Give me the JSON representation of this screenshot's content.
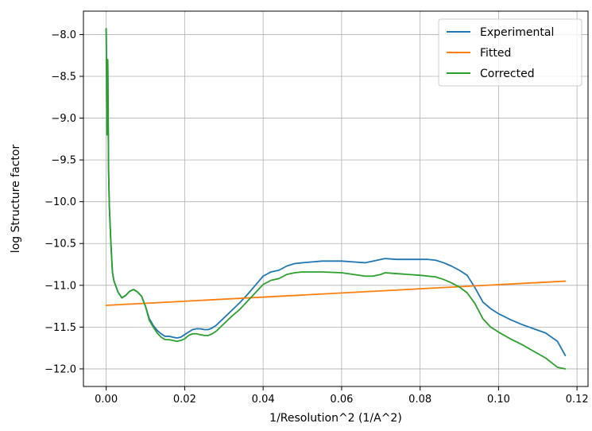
{
  "chart_data": {
    "type": "line",
    "title": "",
    "xlabel": "1/Resolution^2 (1/A^2)",
    "ylabel": "log Structure factor",
    "xlim": [
      -0.0058,
      0.1228
    ],
    "ylim": [
      -12.21,
      -7.72
    ],
    "xticks": [
      0.0,
      0.02,
      0.04,
      0.06,
      0.08,
      0.1,
      0.12
    ],
    "xtick_labels": [
      "0.00",
      "0.02",
      "0.04",
      "0.06",
      "0.08",
      "0.10",
      "0.12"
    ],
    "yticks": [
      -8.0,
      -8.5,
      -9.0,
      -9.5,
      -10.0,
      -10.5,
      -11.0,
      -11.5,
      -12.0
    ],
    "ytick_labels": [
      "−8.0",
      "−8.5",
      "−9.0",
      "−9.5",
      "−10.0",
      "−10.5",
      "−11.0",
      "−11.5",
      "−12.0"
    ],
    "grid": true,
    "legend_position": "top-right",
    "series": [
      {
        "name": "Experimental",
        "color": "#1f77b4",
        "x": [
          0.0,
          0.0002,
          0.0004,
          0.0006,
          0.0008,
          0.0012,
          0.0016,
          0.002,
          0.003,
          0.004,
          0.005,
          0.006,
          0.007,
          0.008,
          0.009,
          0.01,
          0.011,
          0.012,
          0.013,
          0.014,
          0.015,
          0.016,
          0.017,
          0.018,
          0.019,
          0.02,
          0.021,
          0.022,
          0.023,
          0.024,
          0.025,
          0.026,
          0.027,
          0.028,
          0.03,
          0.032,
          0.034,
          0.036,
          0.038,
          0.04,
          0.042,
          0.044,
          0.046,
          0.048,
          0.05,
          0.055,
          0.06,
          0.063,
          0.066,
          0.068,
          0.07,
          0.071,
          0.074,
          0.077,
          0.08,
          0.082,
          0.084,
          0.086,
          0.088,
          0.09,
          0.092,
          0.094,
          0.096,
          0.098,
          0.1,
          0.103,
          0.106,
          0.109,
          0.112,
          0.115,
          0.117
        ],
        "y": [
          -7.93,
          -9.2,
          -8.3,
          -9.6,
          -10.05,
          -10.5,
          -10.85,
          -10.95,
          -11.08,
          -11.15,
          -11.12,
          -11.07,
          -11.05,
          -11.08,
          -11.13,
          -11.25,
          -11.4,
          -11.48,
          -11.54,
          -11.58,
          -11.61,
          -11.61,
          -11.62,
          -11.63,
          -11.62,
          -11.59,
          -11.56,
          -11.53,
          -11.52,
          -11.52,
          -11.53,
          -11.53,
          -11.51,
          -11.48,
          -11.39,
          -11.3,
          -11.21,
          -11.11,
          -11.0,
          -10.89,
          -10.84,
          -10.82,
          -10.77,
          -10.74,
          -10.73,
          -10.71,
          -10.71,
          -10.72,
          -10.73,
          -10.71,
          -10.69,
          -10.68,
          -10.69,
          -10.69,
          -10.69,
          -10.69,
          -10.7,
          -10.73,
          -10.77,
          -10.82,
          -10.88,
          -11.03,
          -11.2,
          -11.28,
          -11.34,
          -11.41,
          -11.47,
          -11.52,
          -11.57,
          -11.67,
          -11.84
        ]
      },
      {
        "name": "Fitted",
        "color": "#ff7f0e",
        "x": [
          0.0,
          0.117
        ],
        "y": [
          -11.24,
          -10.95
        ]
      },
      {
        "name": "Corrected",
        "color": "#2ca02c",
        "x": [
          0.0,
          0.0002,
          0.0004,
          0.0006,
          0.0008,
          0.0012,
          0.0016,
          0.002,
          0.003,
          0.004,
          0.005,
          0.006,
          0.007,
          0.008,
          0.009,
          0.01,
          0.011,
          0.012,
          0.013,
          0.014,
          0.015,
          0.016,
          0.017,
          0.018,
          0.019,
          0.02,
          0.021,
          0.022,
          0.023,
          0.024,
          0.025,
          0.026,
          0.027,
          0.028,
          0.03,
          0.032,
          0.034,
          0.036,
          0.038,
          0.04,
          0.042,
          0.044,
          0.046,
          0.048,
          0.05,
          0.055,
          0.06,
          0.063,
          0.066,
          0.068,
          0.07,
          0.071,
          0.074,
          0.077,
          0.08,
          0.082,
          0.084,
          0.086,
          0.088,
          0.09,
          0.092,
          0.094,
          0.096,
          0.098,
          0.1,
          0.103,
          0.106,
          0.109,
          0.112,
          0.115,
          0.117
        ],
        "y": [
          -7.93,
          -9.2,
          -8.3,
          -9.6,
          -10.05,
          -10.5,
          -10.85,
          -10.95,
          -11.08,
          -11.15,
          -11.12,
          -11.07,
          -11.05,
          -11.08,
          -11.13,
          -11.25,
          -11.42,
          -11.5,
          -11.57,
          -11.62,
          -11.65,
          -11.65,
          -11.66,
          -11.67,
          -11.66,
          -11.64,
          -11.6,
          -11.58,
          -11.58,
          -11.59,
          -11.6,
          -11.6,
          -11.58,
          -11.55,
          -11.46,
          -11.37,
          -11.29,
          -11.19,
          -11.09,
          -10.99,
          -10.94,
          -10.92,
          -10.87,
          -10.85,
          -10.84,
          -10.84,
          -10.85,
          -10.87,
          -10.89,
          -10.89,
          -10.87,
          -10.85,
          -10.86,
          -10.87,
          -10.88,
          -10.89,
          -10.9,
          -10.93,
          -10.97,
          -11.02,
          -11.09,
          -11.22,
          -11.4,
          -11.5,
          -11.56,
          -11.64,
          -11.71,
          -11.79,
          -11.87,
          -11.98,
          -12.0
        ]
      }
    ]
  }
}
